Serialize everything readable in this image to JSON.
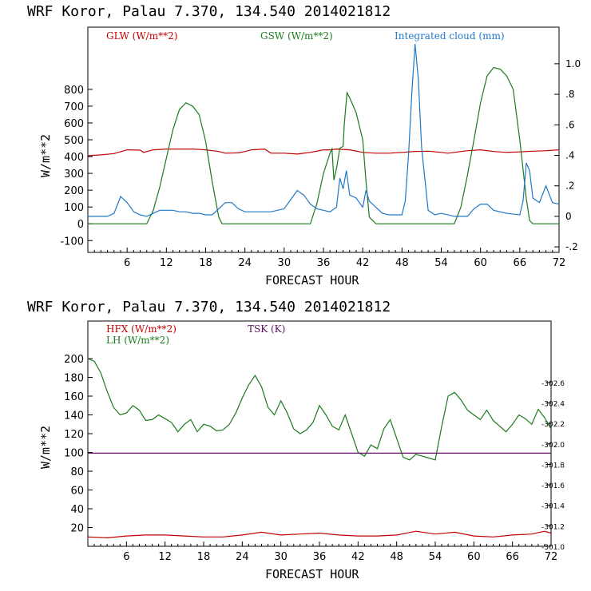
{
  "chart_data": [
    {
      "type": "line",
      "title": "WRF   Koror, Palau   7.370, 134.540  2014021812",
      "xlabel": "FORECAST HOUR",
      "ylabel": "W/m**2",
      "xlim": [
        0,
        72
      ],
      "ylim": [
        -170,
        1170
      ],
      "y2lim": [
        -0.236,
        1.24
      ],
      "x_ticks": [
        6,
        12,
        18,
        24,
        30,
        36,
        42,
        48,
        54,
        60,
        66,
        72
      ],
      "y_ticks": [
        -100,
        0,
        100,
        200,
        300,
        400,
        500,
        600,
        700,
        800
      ],
      "y2_ticks": [
        -0.2,
        0,
        0.2,
        0.4,
        0.6,
        0.8,
        1.0
      ],
      "y2_tick_labels": [
        "-.2",
        "0",
        ".2",
        ".4",
        ".6",
        ".8",
        "1.0"
      ],
      "series": [
        {
          "name": "GLW (W/m**2)",
          "color": "#c00000",
          "axis": "left",
          "x": [
            0,
            2,
            4,
            6,
            8,
            8.5,
            10,
            12,
            14,
            16,
            18,
            20,
            21,
            23,
            24,
            25,
            27,
            28,
            30,
            32,
            34,
            36,
            37,
            38,
            40,
            42,
            44,
            46,
            48,
            50,
            52,
            54,
            55,
            56,
            58,
            60,
            62,
            64,
            66,
            68,
            70,
            72
          ],
          "y": [
            405,
            410,
            418,
            440,
            438,
            425,
            440,
            445,
            445,
            445,
            440,
            430,
            420,
            422,
            430,
            440,
            445,
            420,
            420,
            415,
            425,
            440,
            440,
            445,
            440,
            425,
            420,
            420,
            425,
            430,
            432,
            425,
            420,
            425,
            435,
            440,
            430,
            425,
            428,
            432,
            435,
            440
          ]
        },
        {
          "name": "GSW (W/m**2)",
          "color": "#1a7a1a",
          "axis": "left",
          "x": [
            0,
            1,
            2,
            3,
            4,
            5,
            6,
            7,
            8,
            9,
            10,
            11,
            12,
            13,
            14,
            15,
            16,
            17,
            18,
            19,
            20,
            20.5,
            21,
            24,
            27,
            30,
            32,
            33,
            34,
            35,
            36,
            37,
            37.3,
            37.6,
            38,
            38.5,
            39,
            39.2,
            39.6,
            40,
            41,
            42,
            42.5,
            43,
            44,
            50,
            54,
            56,
            57,
            58,
            59,
            60,
            61,
            62,
            63,
            64,
            65,
            66,
            67,
            67.5,
            68,
            70,
            72
          ],
          "y": [
            0,
            0,
            0,
            0,
            0,
            0,
            0,
            0,
            0,
            0,
            80,
            220,
            390,
            560,
            680,
            720,
            700,
            650,
            490,
            250,
            40,
            0,
            0,
            0,
            0,
            0,
            0,
            0,
            0,
            120,
            300,
            420,
            445,
            260,
            330,
            450,
            460,
            600,
            780,
            750,
            660,
            500,
            250,
            40,
            0,
            0,
            0,
            0,
            100,
            290,
            500,
            720,
            880,
            930,
            920,
            880,
            800,
            500,
            150,
            20,
            0,
            0,
            0
          ]
        },
        {
          "name": "Integrated cloud (mm)",
          "color": "#1f78c8",
          "axis": "right",
          "x": [
            0,
            3,
            4,
            5,
            6,
            7,
            8,
            9,
            10,
            11,
            12,
            13,
            14,
            15,
            16,
            17,
            18,
            19,
            20,
            21,
            22,
            23,
            24,
            26,
            28,
            30,
            31,
            32,
            33,
            34,
            35,
            36,
            37,
            38,
            38.5,
            39,
            39.5,
            40,
            41,
            42,
            42.5,
            43,
            44,
            45,
            46,
            47,
            48,
            48.5,
            49,
            49.5,
            50,
            50.5,
            51,
            52,
            53,
            54,
            56,
            58,
            59,
            60,
            61,
            62,
            64,
            66,
            66.5,
            67,
            67.5,
            68,
            69,
            70,
            71,
            72
          ],
          "y": [
            0,
            0,
            0.02,
            0.13,
            0.09,
            0.03,
            0.01,
            0,
            0.02,
            0.04,
            0.04,
            0.04,
            0.03,
            0.03,
            0.02,
            0.02,
            0.01,
            0.01,
            0.05,
            0.09,
            0.09,
            0.05,
            0.03,
            0.03,
            0.03,
            0.05,
            0.11,
            0.17,
            0.14,
            0.08,
            0.05,
            0.04,
            0.03,
            0.06,
            0.25,
            0.18,
            0.3,
            0.14,
            0.12,
            0.06,
            0.17,
            0.1,
            0.06,
            0.02,
            0.01,
            0.01,
            0.01,
            0.1,
            0.4,
            0.8,
            1.13,
            0.9,
            0.45,
            0.04,
            0.01,
            0.02,
            0,
            0,
            0.05,
            0.08,
            0.08,
            0.04,
            0.02,
            0.01,
            0.1,
            0.35,
            0.3,
            0.12,
            0.09,
            0.2,
            0.09,
            0.08
          ]
        }
      ]
    },
    {
      "type": "line",
      "title": "WRF   Koror, Palau   7.370, 134.540  2014021812",
      "xlabel": "FORECAST HOUR",
      "ylabel": "W/m**2",
      "xlim": [
        0,
        72
      ],
      "ylim": [
        0,
        240
      ],
      "y2lim": [
        301.0,
        303.2
      ],
      "x_ticks": [
        6,
        12,
        18,
        24,
        30,
        36,
        42,
        48,
        54,
        60,
        66,
        72
      ],
      "y_ticks": [
        20,
        40,
        60,
        80,
        100,
        120,
        140,
        160,
        180,
        200
      ],
      "y2_ticks": [
        301.0,
        301.2,
        301.4,
        301.6,
        301.8,
        302.0,
        302.2,
        302.4,
        302.6
      ],
      "y2_tick_labels": [
        "-301.0",
        "-301.2",
        "-301.4",
        "-301.6",
        "-301.8",
        "-302.0",
        "-302.2",
        "-302.4",
        "-302.6"
      ],
      "series": [
        {
          "name": "HFX (W/m**2)",
          "color": "#c00000",
          "axis": "left",
          "x": [
            0,
            3,
            6,
            9,
            12,
            15,
            18,
            21,
            24,
            27,
            30,
            33,
            36,
            39,
            42,
            45,
            48,
            51,
            54,
            57,
            60,
            63,
            66,
            69,
            71,
            72
          ],
          "y": [
            10,
            9,
            11,
            12,
            12,
            11,
            10,
            10,
            12,
            15,
            12,
            13,
            14,
            12,
            11,
            11,
            12,
            16,
            13,
            15,
            11,
            10,
            12,
            13,
            16,
            14
          ]
        },
        {
          "name": "LH (W/m**2)",
          "color": "#1a7a1a",
          "axis": "left",
          "x": [
            0,
            1,
            2,
            3,
            4,
            5,
            6,
            7,
            8,
            9,
            10,
            11,
            12,
            13,
            14,
            15,
            16,
            17,
            18,
            19,
            20,
            21,
            22,
            23,
            24,
            25,
            26,
            27,
            28,
            29,
            30,
            31,
            32,
            33,
            34,
            35,
            36,
            37,
            38,
            39,
            40,
            41,
            42,
            43,
            44,
            45,
            46,
            47,
            48,
            49,
            50,
            51,
            52,
            53,
            54,
            55,
            56,
            57,
            58,
            59,
            60,
            61,
            62,
            63,
            64,
            65,
            66,
            67,
            68,
            69,
            70,
            71,
            72
          ],
          "y": [
            200,
            197,
            185,
            165,
            148,
            140,
            142,
            150,
            145,
            134,
            135,
            140,
            136,
            132,
            122,
            130,
            135,
            122,
            130,
            128,
            123,
            124,
            130,
            142,
            158,
            172,
            182,
            170,
            148,
            140,
            155,
            142,
            125,
            120,
            124,
            132,
            150,
            140,
            128,
            124,
            140,
            120,
            100,
            96,
            108,
            104,
            125,
            135,
            115,
            95,
            92,
            98,
            96,
            94,
            92,
            128,
            160,
            164,
            156,
            145,
            140,
            135,
            145,
            134,
            128,
            122,
            130,
            140,
            136,
            130,
            146,
            137,
            125
          ]
        },
        {
          "name": "TSK (K)",
          "color": "#5c1060",
          "axis": "right",
          "x": [
            0,
            72
          ],
          "y": [
            301.91,
            301.91
          ]
        }
      ]
    }
  ]
}
